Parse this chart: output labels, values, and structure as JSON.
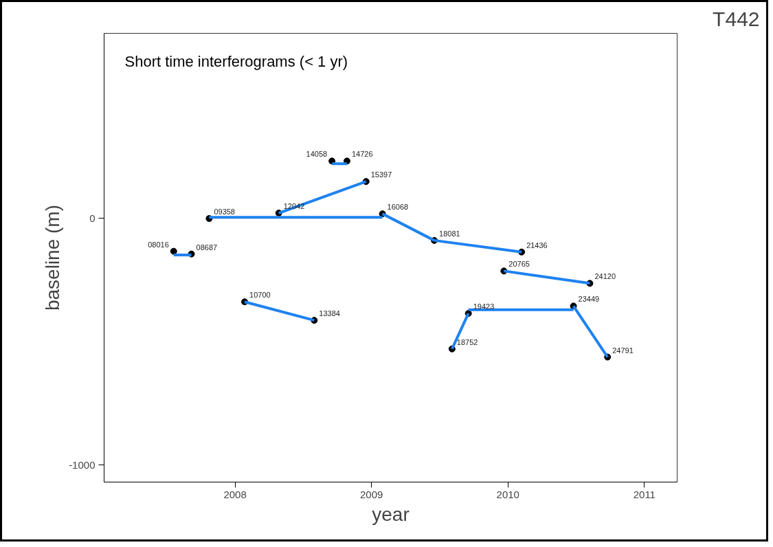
{
  "chart_data": {
    "type": "scatter",
    "title": "T442",
    "subtitle": "Short time interferograms (< 1 yr)",
    "xlabel": "year",
    "ylabel": "baseline (m)",
    "xlim": [
      2007.04,
      2011.24
    ],
    "ylim": [
      -1069,
      751
    ],
    "xticks": [
      2008,
      2009,
      2010,
      2011
    ],
    "yticks": [
      -1000,
      0
    ],
    "grid": false,
    "series": [
      {
        "marker": "circle",
        "color": "#000000",
        "x": [
          2007.55,
          2007.68,
          2007.81,
          2008.07,
          2008.32,
          2008.58,
          2008.71,
          2008.82,
          2008.96,
          2009.08,
          2009.46,
          2009.59,
          2009.71,
          2009.97,
          2010.1,
          2010.48,
          2010.6,
          2010.73
        ],
        "values": [
          -133,
          -144,
          0,
          -338,
          22,
          -413,
          233,
          233,
          150,
          19,
          -89,
          -529,
          -385,
          -213,
          -136,
          -355,
          -263,
          -562
        ]
      },
      {
        "type": "line",
        "color": "#1e82f0",
        "x": [
          2007.55,
          2007.68
        ],
        "values": [
          -148,
          -148
        ]
      },
      {
        "type": "line",
        "color": "#1e82f0",
        "x": [
          2007.81,
          2008.32,
          2009.08
        ],
        "values": [
          5,
          5,
          5
        ]
      },
      {
        "type": "line",
        "color": "#1e82f0",
        "x": [
          2008.32,
          2008.96
        ],
        "values": [
          22,
          150
        ]
      },
      {
        "type": "line",
        "color": "#1e82f0",
        "x": [
          2008.71,
          2008.82
        ],
        "values": [
          222,
          222
        ]
      },
      {
        "type": "line",
        "color": "#1e82f0",
        "x": [
          2009.08,
          2009.46
        ],
        "values": [
          19,
          -89
        ]
      },
      {
        "type": "line",
        "color": "#1e82f0",
        "x": [
          2009.46,
          2010.1
        ],
        "values": [
          -89,
          -136
        ]
      },
      {
        "type": "line",
        "color": "#1e82f0",
        "x": [
          2009.97,
          2010.6
        ],
        "values": [
          -213,
          -263
        ]
      },
      {
        "type": "line",
        "color": "#1e82f0",
        "x": [
          2008.07,
          2008.58
        ],
        "values": [
          -338,
          -413
        ]
      },
      {
        "type": "line",
        "color": "#1e82f0",
        "x": [
          2009.59,
          2009.71
        ],
        "values": [
          -529,
          -385
        ]
      },
      {
        "type": "line",
        "color": "#1e82f0",
        "x": [
          2009.71,
          2010.48
        ],
        "values": [
          -370,
          -370
        ]
      },
      {
        "type": "line",
        "color": "#1e82f0",
        "x": [
          2010.48,
          2010.73
        ],
        "values": [
          -355,
          -562
        ]
      }
    ],
    "annotations": [
      {
        "text": "08016",
        "x": 2007.55,
        "y": -133
      },
      {
        "text": "08687",
        "x": 2007.68,
        "y": -144
      },
      {
        "text": "09358",
        "x": 2007.81,
        "y": 0
      },
      {
        "text": "10700",
        "x": 2008.07,
        "y": -338
      },
      {
        "text": "12042",
        "x": 2008.32,
        "y": 22
      },
      {
        "text": "13384",
        "x": 2008.58,
        "y": -413
      },
      {
        "text": "14058",
        "x": 2008.71,
        "y": 233
      },
      {
        "text": "14726",
        "x": 2008.82,
        "y": 233
      },
      {
        "text": "15397",
        "x": 2008.96,
        "y": 150
      },
      {
        "text": "16068",
        "x": 2009.08,
        "y": 19
      },
      {
        "text": "18081",
        "x": 2009.46,
        "y": -89
      },
      {
        "text": "18752",
        "x": 2009.59,
        "y": -529
      },
      {
        "text": "19423",
        "x": 2009.71,
        "y": -385
      },
      {
        "text": "20765",
        "x": 2009.97,
        "y": -213
      },
      {
        "text": "21436",
        "x": 2010.1,
        "y": -136
      },
      {
        "text": "23449",
        "x": 2010.48,
        "y": -355
      },
      {
        "text": "24120",
        "x": 2010.6,
        "y": -263
      },
      {
        "text": "24791",
        "x": 2010.73,
        "y": -562
      }
    ]
  }
}
